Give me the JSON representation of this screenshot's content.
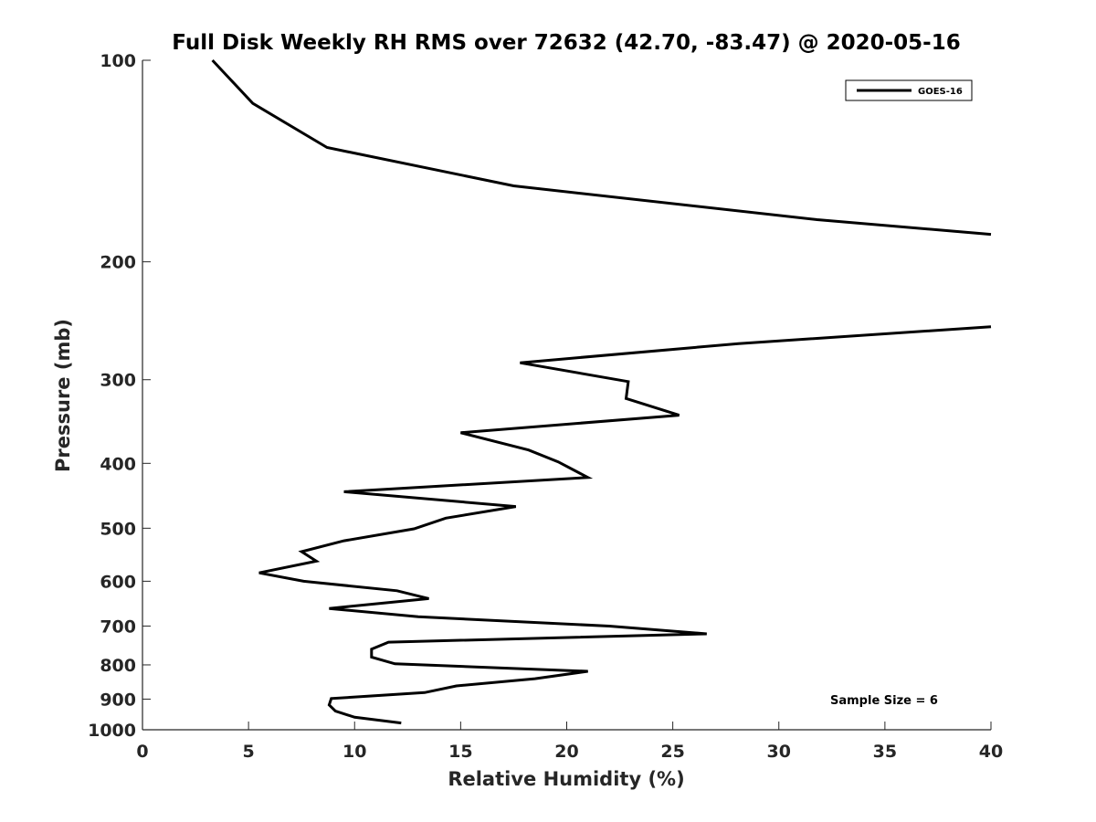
{
  "chart_data": {
    "type": "line",
    "title": "Full Disk Weekly RH RMS over 72632 (42.70, -83.47) @ 2020-05-16",
    "xlabel": "Relative Humidity (%)",
    "ylabel": "Pressure (mb)",
    "xlim": [
      0,
      40
    ],
    "ylim": [
      1000,
      100
    ],
    "yscale": "log",
    "y_reversed": true,
    "grid": false,
    "legend_position": "top-right",
    "x_ticks": [
      0,
      5,
      10,
      15,
      20,
      25,
      30,
      35,
      40
    ],
    "y_ticks": [
      100,
      200,
      300,
      400,
      500,
      600,
      700,
      800,
      900,
      1000
    ],
    "annotation": "Sample Size = 6",
    "series": [
      {
        "name": "GOES-16",
        "color": "#000000",
        "segments": [
          {
            "x": [
              3.3,
              5.2,
              8.7,
              17.5,
              31.8,
              40
            ],
            "y": [
              100,
              116,
              135,
              154,
              173,
              182
            ]
          },
          {
            "x": [
              40,
              28.1,
              17.8,
              22.9,
              22.8,
              25.3,
              15.0,
              18.2,
              19.6,
              21.0,
              9.5,
              17.6,
              14.3,
              12.8,
              9.5,
              7.5,
              8.2,
              5.5,
              7.6,
              12.0,
              13.5,
              8.8,
              13.0,
              22.0,
              26.6,
              11.6,
              10.8,
              10.8,
              11.9,
              21.0,
              18.5,
              14.8,
              13.3,
              8.9,
              8.8,
              9.1,
              10.0,
              12.2
            ],
            "y": [
              250,
              265,
              283,
              302,
              320,
              339,
              360,
              382,
              398,
              420,
              441,
              464,
              483,
              501,
              522,
              542,
              560,
              583,
              600,
              620,
              637,
              659,
              678,
              700,
              719,
              740,
              758,
              779,
              797,
              818,
              839,
              860,
              880,
              898,
              918,
              938,
              958,
              977
            ]
          }
        ]
      }
    ]
  }
}
